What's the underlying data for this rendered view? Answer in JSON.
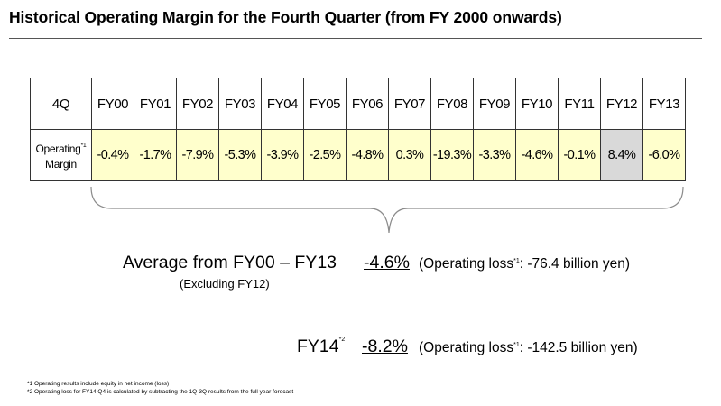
{
  "title": "Historical Operating Margin for the Fourth Quarter  (from FY 2000 onwards)",
  "table": {
    "corner_label": "4Q",
    "row_label": "Operating",
    "row_label_line2": "Margin",
    "row_label_note": "*1",
    "years": [
      "FY00",
      "FY01",
      "FY02",
      "FY03",
      "FY04",
      "FY05",
      "FY06",
      "FY07",
      "FY08",
      "FY09",
      "FY10",
      "FY11",
      "FY12",
      "FY13"
    ],
    "margins": [
      "-0.4%",
      "-1.7%",
      "-7.9%",
      "-5.3%",
      "-3.9%",
      "-2.5%",
      "-4.8%",
      "0.3%",
      "-19.3%",
      "-3.3%",
      "-4.6%",
      "-0.1%",
      "8.4%",
      "-6.0%"
    ],
    "highlighted_year": "FY12",
    "cell_color": "#ffffcc",
    "highlight_color": "#d9d9d9"
  },
  "average": {
    "label": "Average from FY00 – FY13",
    "sublabel": "(Excluding FY12)",
    "value": "-4.6%",
    "loss_prefix": "(Operating loss",
    "loss_note": "*1",
    "loss_suffix": ":  -76.4 billion yen)"
  },
  "fy14": {
    "label": "FY14",
    "label_note": "*2",
    "value": "-8.2%",
    "loss_prefix": "(Operating loss",
    "loss_note": "*1",
    "loss_suffix": ":  -142.5 billion yen)"
  },
  "footnotes": [
    "*1 Operating results include equity in net income (loss)",
    "*2 Operating loss for FY14 Q4 is calculated by subtracting the 1Q-3Q results from the full year forecast"
  ]
}
